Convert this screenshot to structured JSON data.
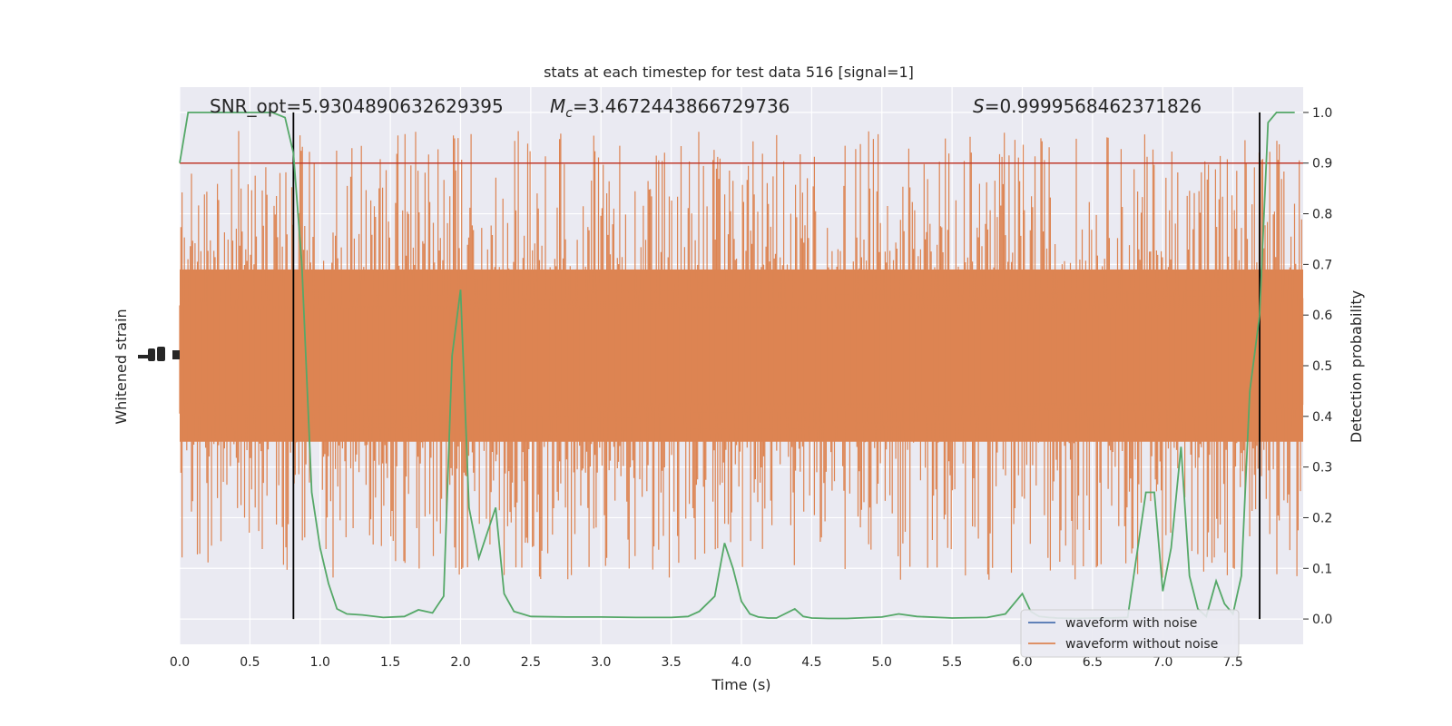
{
  "chart_data": {
    "type": "line",
    "title": "stats at each timestep for test data 516 [signal=1]",
    "xlabel": "Time (s)",
    "ylabel_left": "Whitened strain",
    "ylabel_right": "Detection probability",
    "xlim": [
      0.0,
      8.0
    ],
    "ylim_right": [
      -0.05,
      1.05
    ],
    "x_ticks": [
      "0.0",
      "0.5",
      "1.0",
      "1.5",
      "2.0",
      "2.5",
      "3.0",
      "3.5",
      "4.0",
      "4.5",
      "5.0",
      "5.5",
      "6.0",
      "6.5",
      "7.0",
      "7.5"
    ],
    "y_ticks_right": [
      "0.0",
      "0.1",
      "0.2",
      "0.3",
      "0.4",
      "0.5",
      "0.6",
      "0.7",
      "0.8",
      "0.9",
      "1.0"
    ],
    "grid": true,
    "background_color": "#eaeaf2",
    "annotations": {
      "snr": "SNR_opt=5.9304890632629395",
      "mc_symbol": "M",
      "mc_subscript": "c",
      "mc_value": "=3.4672443866729736",
      "s_symbol": "S",
      "s_value": "=0.9999568462371826"
    },
    "threshold": {
      "value": 0.9,
      "color": "#c0392b"
    },
    "vertical_markers": [
      0.81,
      7.69
    ],
    "legend": {
      "position": "lower right",
      "entries": [
        {
          "label": "waveform with noise",
          "color": "#4c72b0"
        },
        {
          "label": "waveform without noise",
          "color": "#dd8452"
        }
      ]
    },
    "series": [
      {
        "label": "waveform with noise",
        "color": "#dd8452",
        "note_values": "dense noise around center ~0.5 (right-axis units), amplitude range approx 0.0 to 1.0",
        "center": 0.52,
        "core_half_width": 0.17,
        "spike_max": 0.35
      },
      {
        "name": "detection probability",
        "color": "#55a868",
        "x": [
          0.0,
          0.06,
          0.12,
          0.25,
          0.4,
          0.55,
          0.66,
          0.75,
          0.81,
          0.87,
          0.94,
          1.0,
          1.06,
          1.12,
          1.19,
          1.3,
          1.45,
          1.6,
          1.7,
          1.8,
          1.88,
          1.94,
          2.0,
          2.06,
          2.13,
          2.19,
          2.25,
          2.31,
          2.38,
          2.5,
          2.75,
          3.0,
          3.25,
          3.5,
          3.62,
          3.7,
          3.81,
          3.88,
          3.94,
          4.0,
          4.06,
          4.12,
          4.19,
          4.25,
          4.38,
          4.44,
          4.5,
          4.62,
          4.75,
          5.0,
          5.12,
          5.25,
          5.5,
          5.75,
          5.88,
          6.0,
          6.06,
          6.12,
          6.19,
          6.25,
          6.38,
          6.5,
          6.62,
          6.75,
          6.88,
          6.94,
          7.0,
          7.06,
          7.13,
          7.19,
          7.25,
          7.31,
          7.38,
          7.44,
          7.5,
          7.56,
          7.62,
          7.69,
          7.75,
          7.81,
          7.88,
          7.94
        ],
        "y": [
          0.9,
          1.0,
          1.0,
          1.0,
          1.0,
          1.0,
          1.0,
          0.99,
          0.92,
          0.7,
          0.25,
          0.14,
          0.07,
          0.02,
          0.01,
          0.008,
          0.003,
          0.005,
          0.018,
          0.012,
          0.045,
          0.52,
          0.65,
          0.22,
          0.12,
          0.17,
          0.22,
          0.05,
          0.015,
          0.005,
          0.004,
          0.004,
          0.003,
          0.003,
          0.005,
          0.015,
          0.045,
          0.15,
          0.1,
          0.035,
          0.01,
          0.004,
          0.002,
          0.002,
          0.02,
          0.005,
          0.002,
          0.001,
          0.001,
          0.004,
          0.01,
          0.005,
          0.002,
          0.003,
          0.01,
          0.05,
          0.015,
          0.005,
          0.003,
          0.002,
          0.001,
          0.002,
          0.002,
          0.003,
          0.25,
          0.25,
          0.055,
          0.14,
          0.34,
          0.085,
          0.02,
          0.005,
          0.075,
          0.03,
          0.01,
          0.085,
          0.45,
          0.6,
          0.98,
          1.0,
          1.0,
          1.0
        ]
      }
    ]
  }
}
